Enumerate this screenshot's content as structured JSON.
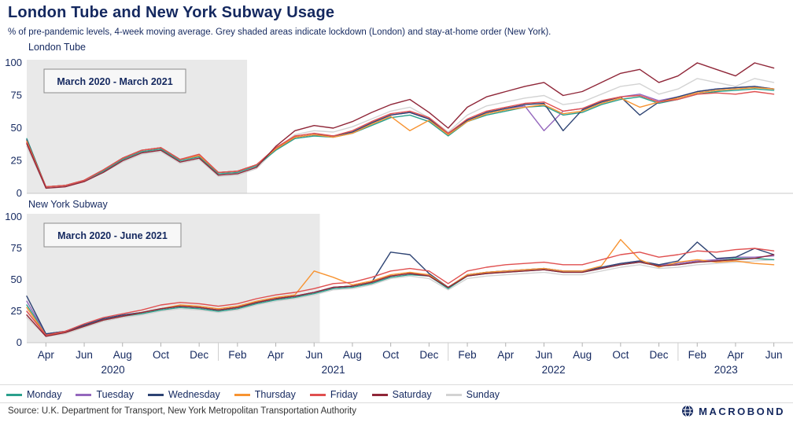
{
  "header": {
    "title": "London Tube and New York Subway Usage",
    "subtitle": "% of pre-pandemic levels, 4-week moving average. Grey shaded areas indicate lockdown (London) and stay-at-home order (New York)."
  },
  "chart_data": {
    "type": "line",
    "x_unit": "months since March 2020 (0 = Mar 2020, 39 = Jun 2023)",
    "x_ticks": [
      {
        "m": 1,
        "label": "Apr"
      },
      {
        "m": 3,
        "label": "Jun"
      },
      {
        "m": 5,
        "label": "Aug"
      },
      {
        "m": 7,
        "label": "Oct"
      },
      {
        "m": 9,
        "label": "Dec"
      },
      {
        "m": 11,
        "label": "Feb"
      },
      {
        "m": 13,
        "label": "Apr"
      },
      {
        "m": 15,
        "label": "Jun"
      },
      {
        "m": 17,
        "label": "Aug"
      },
      {
        "m": 19,
        "label": "Oct"
      },
      {
        "m": 21,
        "label": "Dec"
      },
      {
        "m": 23,
        "label": "Feb"
      },
      {
        "m": 25,
        "label": "Apr"
      },
      {
        "m": 27,
        "label": "Jun"
      },
      {
        "m": 29,
        "label": "Aug"
      },
      {
        "m": 31,
        "label": "Oct"
      },
      {
        "m": 33,
        "label": "Dec"
      },
      {
        "m": 35,
        "label": "Feb"
      },
      {
        "m": 37,
        "label": "Apr"
      },
      {
        "m": 39,
        "label": "Jun"
      }
    ],
    "year_labels": [
      {
        "m": 4.5,
        "label": "2020"
      },
      {
        "m": 16,
        "label": "2021"
      },
      {
        "m": 27.5,
        "label": "2022"
      },
      {
        "m": 36.5,
        "label": "2023"
      }
    ],
    "year_separators": [
      10,
      22,
      34
    ],
    "draw_order": [
      6,
      0,
      1,
      2,
      3,
      4,
      5
    ],
    "style": {
      "shade_color": "#e9e9e9",
      "axis_text_color": "#14285f"
    },
    "charts": [
      {
        "name": "London Tube",
        "ylim": [
          0,
          100
        ],
        "yticks": [
          0,
          25,
          50,
          75,
          100
        ],
        "shade": {
          "from": 0,
          "to": 11.5,
          "label": "March 2020 - March 2021"
        },
        "series": [
          {
            "day": "Monday",
            "color": "#2aa08c",
            "values": [
              42,
              5,
              6,
              10,
              17,
              26,
              32,
              34,
              25,
              28,
              15,
              16,
              21,
              33,
              42,
              44,
              43,
              46,
              52,
              58,
              60,
              55,
              44,
              55,
              60,
              63,
              66,
              67,
              60,
              62,
              68,
              72,
              74,
              69,
              72,
              76,
              78,
              79,
              80,
              79
            ]
          },
          {
            "day": "Tuesday",
            "color": "#9467bd",
            "values": [
              40,
              5,
              6,
              10,
              18,
              27,
              33,
              35,
              26,
              29,
              16,
              17,
              22,
              34,
              43,
              45,
              44,
              47,
              54,
              60,
              62,
              57,
              45,
              56,
              62,
              65,
              67,
              48,
              63,
              65,
              70,
              74,
              76,
              71,
              74,
              78,
              80,
              81,
              82,
              80
            ]
          },
          {
            "day": "Wednesday",
            "color": "#2d4373",
            "values": [
              41,
              5,
              6,
              10,
              18,
              27,
              33,
              35,
              26,
              29,
              16,
              17,
              22,
              34,
              43,
              45,
              44,
              47,
              54,
              60,
              62,
              57,
              46,
              56,
              62,
              65,
              68,
              69,
              48,
              64,
              70,
              74,
              60,
              70,
              74,
              78,
              80,
              81,
              82,
              80
            ]
          },
          {
            "day": "Thursday",
            "color": "#f79331",
            "values": [
              40,
              5,
              6,
              10,
              18,
              27,
              33,
              35,
              26,
              29,
              16,
              17,
              22,
              34,
              43,
              45,
              43,
              46,
              53,
              59,
              48,
              56,
              45,
              55,
              61,
              64,
              66,
              68,
              61,
              63,
              69,
              73,
              66,
              70,
              73,
              77,
              79,
              80,
              81,
              80
            ]
          },
          {
            "day": "Friday",
            "color": "#e04f4f",
            "values": [
              39,
              5,
              6,
              10,
              18,
              27,
              33,
              35,
              26,
              30,
              16,
              17,
              22,
              35,
              44,
              46,
              44,
              48,
              55,
              61,
              63,
              58,
              46,
              57,
              63,
              66,
              69,
              70,
              63,
              65,
              71,
              74,
              75,
              70,
              72,
              76,
              77,
              76,
              78,
              76
            ]
          },
          {
            "day": "Saturday",
            "color": "#8f2638",
            "values": [
              38,
              4,
              5,
              9,
              16,
              25,
              31,
              33,
              24,
              27,
              14,
              15,
              20,
              36,
              48,
              52,
              50,
              55,
              62,
              68,
              72,
              62,
              50,
              66,
              74,
              78,
              82,
              85,
              75,
              78,
              85,
              92,
              95,
              85,
              90,
              100,
              95,
              90,
              100,
              96
            ]
          },
          {
            "day": "Sunday",
            "color": "#d3d3d3",
            "values": [
              36,
              4,
              5,
              9,
              16,
              24,
              30,
              32,
              23,
              26,
              13,
              14,
              19,
              34,
              45,
              48,
              47,
              51,
              57,
              63,
              66,
              58,
              47,
              60,
              67,
              70,
              73,
              75,
              68,
              70,
              76,
              82,
              84,
              76,
              80,
              88,
              85,
              82,
              88,
              85
            ]
          }
        ]
      },
      {
        "name": "New York Subway",
        "ylim": [
          0,
          100
        ],
        "yticks": [
          0,
          25,
          50,
          75,
          100
        ],
        "shade": {
          "from": 0,
          "to": 15.3,
          "label": "March 2020 - June 2021"
        },
        "series": [
          {
            "day": "Monday",
            "color": "#2aa08c",
            "values": [
              30,
              7,
              9,
              13,
              18,
              21,
              23,
              26,
              28,
              27,
              25,
              27,
              31,
              34,
              36,
              39,
              43,
              44,
              47,
              52,
              54,
              53,
              43,
              53,
              55,
              56,
              57,
              58,
              56,
              56,
              59,
              62,
              64,
              61,
              62,
              64,
              65,
              67,
              67,
              66
            ]
          },
          {
            "day": "Tuesday",
            "color": "#9467bd",
            "values": [
              33,
              7,
              9,
              14,
              19,
              22,
              24,
              27,
              29,
              28,
              26,
              28,
              32,
              35,
              37,
              40,
              44,
              45,
              48,
              53,
              55,
              54,
              44,
              54,
              56,
              57,
              58,
              59,
              57,
              57,
              60,
              63,
              65,
              62,
              63,
              65,
              66,
              68,
              68,
              69
            ]
          },
          {
            "day": "Wednesday",
            "color": "#2d4373",
            "values": [
              37,
              7,
              9,
              14,
              19,
              22,
              24,
              27,
              29,
              28,
              26,
              28,
              32,
              35,
              37,
              40,
              44,
              45,
              48,
              72,
              70,
              55,
              44,
              54,
              56,
              57,
              58,
              59,
              57,
              57,
              60,
              63,
              65,
              62,
              65,
              80,
              67,
              68,
              75,
              70
            ]
          },
          {
            "day": "Thursday",
            "color": "#f79331",
            "values": [
              28,
              6,
              8,
              13,
              18,
              21,
              24,
              27,
              30,
              29,
              27,
              29,
              33,
              36,
              38,
              57,
              52,
              46,
              49,
              54,
              56,
              54,
              44,
              54,
              56,
              57,
              58,
              59,
              57,
              57,
              61,
              82,
              66,
              60,
              64,
              66,
              64,
              65,
              63,
              62
            ]
          },
          {
            "day": "Friday",
            "color": "#e04f4f",
            "values": [
              25,
              6,
              9,
              15,
              20,
              23,
              26,
              30,
              32,
              31,
              29,
              31,
              35,
              38,
              40,
              43,
              47,
              48,
              52,
              57,
              59,
              57,
              47,
              57,
              60,
              62,
              63,
              64,
              62,
              62,
              66,
              70,
              72,
              68,
              70,
              73,
              72,
              74,
              75,
              73
            ]
          },
          {
            "day": "Saturday",
            "color": "#8f2638",
            "values": [
              22,
              5,
              8,
              13,
              18,
              21,
              24,
              27,
              29,
              28,
              26,
              28,
              32,
              35,
              37,
              40,
              44,
              45,
              48,
              53,
              55,
              53,
              44,
              53,
              55,
              56,
              57,
              58,
              56,
              56,
              59,
              62,
              64,
              61,
              62,
              64,
              65,
              66,
              67,
              70
            ]
          },
          {
            "day": "Sunday",
            "color": "#d3d3d3",
            "values": [
              20,
              5,
              7,
              12,
              17,
              20,
              22,
              25,
              27,
              26,
              24,
              26,
              30,
              33,
              35,
              38,
              42,
              43,
              46,
              51,
              53,
              51,
              42,
              51,
              53,
              54,
              55,
              56,
              54,
              54,
              57,
              60,
              62,
              59,
              60,
              62,
              63,
              64,
              65,
              66
            ]
          }
        ]
      }
    ]
  },
  "footer": {
    "source": "Source: U.K. Department for Transport, New York Metropolitan Transportation Authority",
    "brand": "MACROBOND"
  }
}
